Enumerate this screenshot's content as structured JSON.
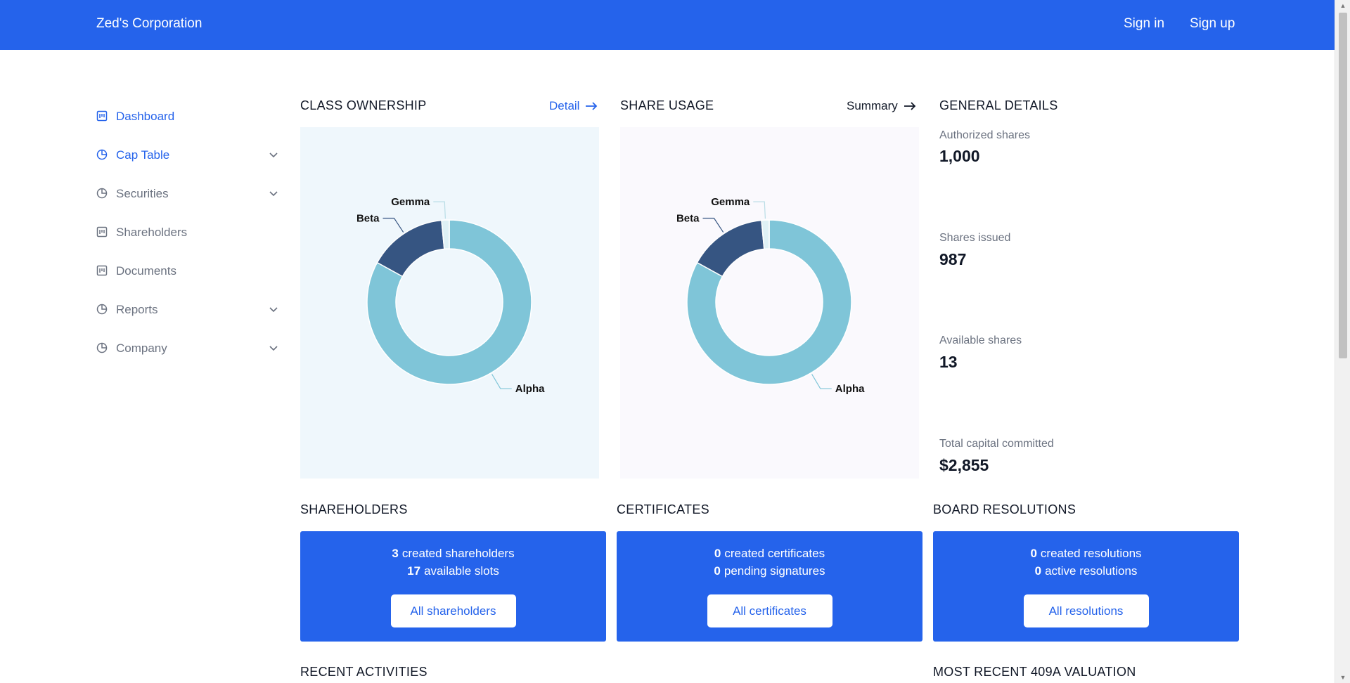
{
  "header": {
    "brand": "Zed's Corporation",
    "sign_in": "Sign in",
    "sign_up": "Sign up"
  },
  "sidebar": {
    "items": [
      {
        "label": "Dashboard",
        "icon": "board-icon",
        "active": true,
        "expandable": false
      },
      {
        "label": "Cap Table",
        "icon": "pie-chart-icon",
        "active": true,
        "expandable": true
      },
      {
        "label": "Securities",
        "icon": "pie-chart-icon",
        "active": false,
        "expandable": true
      },
      {
        "label": "Shareholders",
        "icon": "board-icon",
        "active": false,
        "expandable": false
      },
      {
        "label": "Documents",
        "icon": "board-icon",
        "active": false,
        "expandable": false
      },
      {
        "label": "Reports",
        "icon": "pie-chart-icon",
        "active": false,
        "expandable": true
      },
      {
        "label": "Company",
        "icon": "pie-chart-icon",
        "active": false,
        "expandable": true
      }
    ]
  },
  "class_ownership": {
    "title": "CLASS OWNERSHIP",
    "link": "Detail",
    "chart_data": {
      "type": "pie",
      "categories": [
        "Alpha",
        "Beta",
        "Gemma"
      ],
      "values": [
        83,
        15.5,
        1.5
      ],
      "colors": [
        "#7fc5d8",
        "#365582",
        "#dff1f5"
      ]
    }
  },
  "share_usage": {
    "title": "SHARE USAGE",
    "link": "Summary",
    "chart_data": {
      "type": "pie",
      "categories": [
        "Alpha",
        "Beta",
        "Gemma"
      ],
      "values": [
        83,
        15.5,
        1.5
      ],
      "colors": [
        "#7fc5d8",
        "#365582",
        "#dff1f5"
      ]
    }
  },
  "general_details": {
    "title": "GENERAL DETAILS",
    "authorized_label": "Authorized shares",
    "authorized_value": "1,000",
    "issued_label": "Shares issued",
    "issued_value": "987",
    "available_label": "Available shares",
    "available_value": "13",
    "capital_label": "Total capital committed",
    "capital_value": "$2,855"
  },
  "shareholders": {
    "title": "SHAREHOLDERS",
    "line1_count": "3",
    "line1_text": "created shareholders",
    "line2_count": "17",
    "line2_text": "available slots",
    "button": "All shareholders"
  },
  "certificates": {
    "title": "CERTIFICATES",
    "line1_count": "0",
    "line1_text": "created certificates",
    "line2_count": "0",
    "line2_text": "pending signatures",
    "button": "All certificates"
  },
  "board_resolutions": {
    "title": "BOARD RESOLUTIONS",
    "line1_count": "0",
    "line1_text": "created resolutions",
    "line2_count": "0",
    "line2_text": "active resolutions",
    "button": "All resolutions"
  },
  "recent_activities": {
    "title": "RECENT ACTIVITIES"
  },
  "valuation": {
    "title": "MOST RECENT 409A VALUATION"
  },
  "colors": {
    "primary": "#2563eb",
    "panel_ownership_bg": "#eff7fc",
    "panel_usage_bg": "#faf9fd"
  }
}
